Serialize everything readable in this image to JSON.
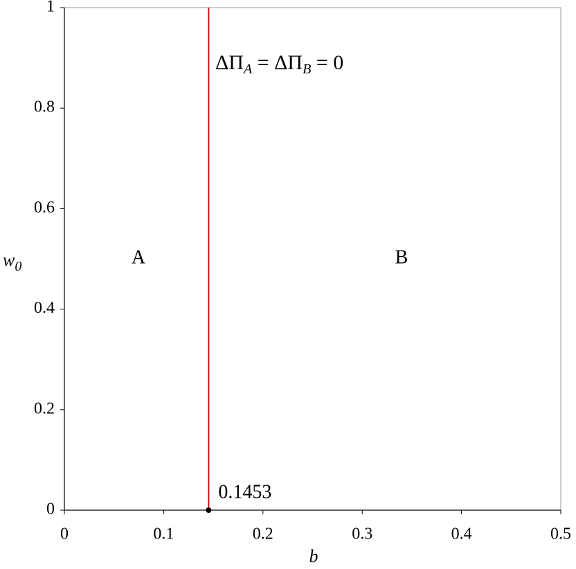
{
  "chart_data": {
    "type": "line",
    "xlabel": "b",
    "ylabel": [
      "w",
      "0"
    ],
    "xlim": [
      0,
      0.5
    ],
    "ylim": [
      0,
      1
    ],
    "xticks": [
      0,
      0.1,
      0.2,
      0.3,
      0.4,
      0.5
    ],
    "yticks": [
      0,
      0.2,
      0.4,
      0.6,
      0.8,
      1
    ],
    "series": [
      {
        "color": "#cc1111",
        "x": [
          0.1453,
          0.1453
        ],
        "values": [
          0,
          1
        ]
      }
    ],
    "point": {
      "x": 0.1453,
      "y": 0,
      "color": "#000000"
    },
    "annotations": [
      {
        "parts": [
          "ΔΠ",
          "A",
          " = ΔΠ",
          "B",
          " = 0"
        ]
      },
      {
        "text": "A"
      },
      {
        "text": "B"
      }
    ]
  }
}
